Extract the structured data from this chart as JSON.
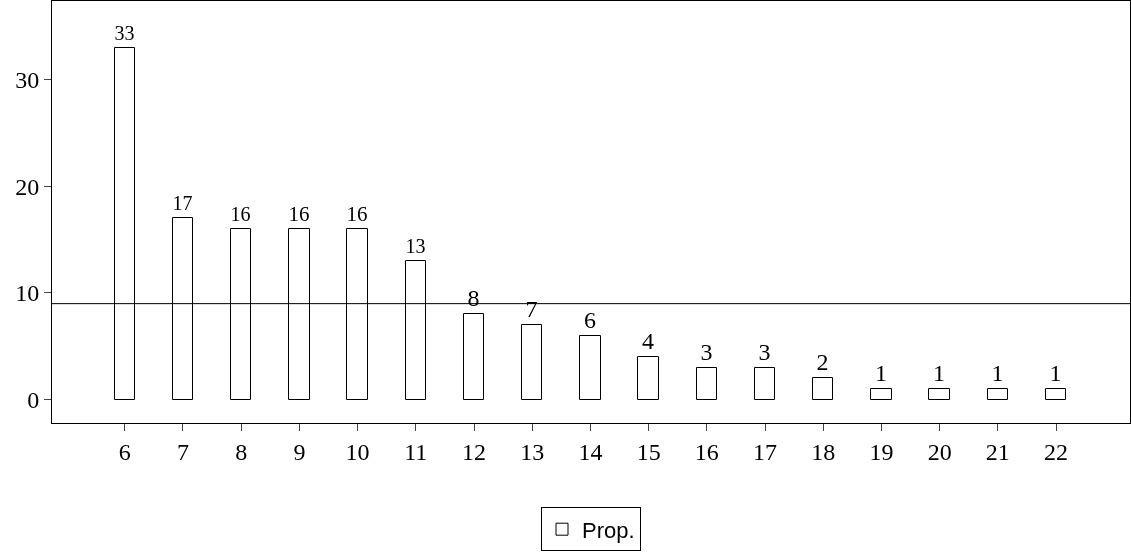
{
  "chart_data": {
    "type": "bar",
    "x": [
      6,
      7,
      8,
      9,
      10,
      11,
      12,
      13,
      14,
      15,
      16,
      17,
      18,
      19,
      20,
      21,
      22
    ],
    "series": [
      {
        "name": "Prop.",
        "color": "#ffffff",
        "values": [
          33,
          17,
          16,
          16,
          16,
          13,
          8,
          7,
          6,
          4,
          3,
          3,
          2,
          1,
          1,
          1,
          1
        ]
      }
    ],
    "xlim": [
      4.75,
      23.27
    ],
    "xticks": [
      6,
      7,
      8,
      9,
      10,
      11,
      12,
      13,
      14,
      15,
      16,
      17,
      18,
      19,
      20,
      21,
      22
    ],
    "ylim": [
      -2.2,
      37.4
    ],
    "yticks": [
      0,
      10,
      20,
      30
    ],
    "ref_lines": [
      {
        "axis": "y",
        "value": 9,
        "color": "#000000"
      }
    ],
    "data_labels": true,
    "grid": false,
    "legend": "bottom"
  }
}
